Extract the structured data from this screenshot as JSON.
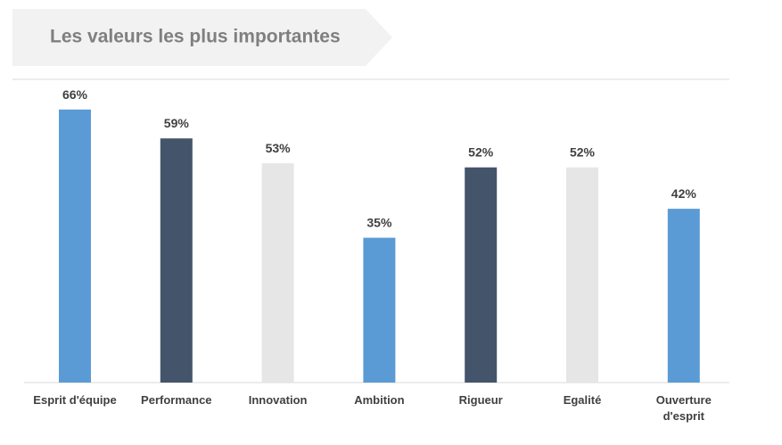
{
  "banner": {
    "title": "Les valeurs les plus importantes"
  },
  "chart_data": {
    "type": "bar",
    "title": "Les valeurs les plus importantes",
    "categories": [
      "Esprit d'équipe",
      "Performance",
      "Innovation",
      "Ambition",
      "Rigueur",
      "Egalité",
      "Ouverture d'esprit"
    ],
    "category_lines": [
      [
        "Esprit d'équipe"
      ],
      [
        "Performance"
      ],
      [
        "Innovation"
      ],
      [
        "Ambition"
      ],
      [
        "Rigueur"
      ],
      [
        "Egalité"
      ],
      [
        "Ouverture",
        "d'esprit"
      ]
    ],
    "values": [
      66,
      59,
      53,
      35,
      52,
      52,
      42
    ],
    "value_labels": [
      "66%",
      "59%",
      "53%",
      "35%",
      "52%",
      "52%",
      "42%"
    ],
    "bar_colors": [
      "#5b9bd5",
      "#44546a",
      "#e7e6e6",
      "#5b9bd5",
      "#44546a",
      "#e7e6e6",
      "#5b9bd5"
    ],
    "ylim": [
      0,
      70
    ],
    "grid": false,
    "legend": "none"
  },
  "colors": {
    "banner_fill": "#f2f2f2",
    "banner_text": "#7f7f7f",
    "axis_line": "#d9d9d9",
    "label_text": "#404040"
  }
}
